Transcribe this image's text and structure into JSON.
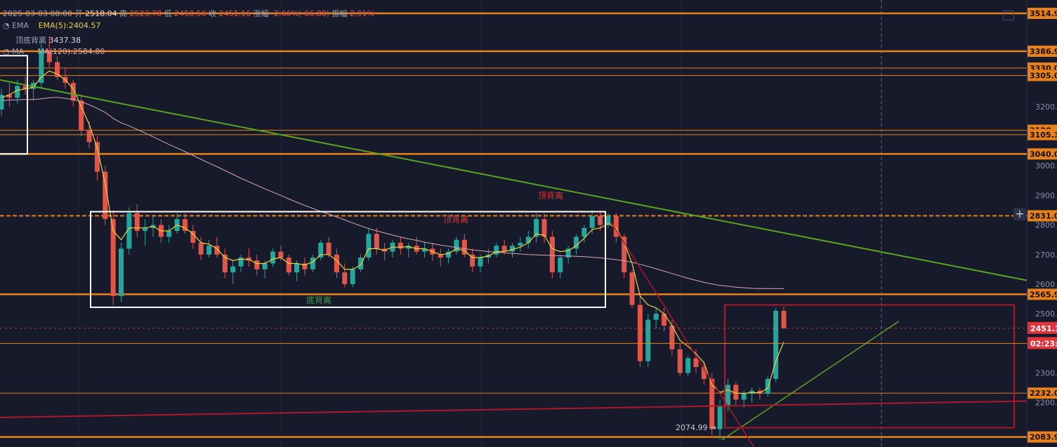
{
  "header": {
    "datetime": "2025-03-03 08:00",
    "open_label": "开",
    "open": "2518.04",
    "high_label": "高",
    "high": "2523.78",
    "low_label": "低",
    "low": "2450.56",
    "close_label": "收",
    "close": "2451.16",
    "change_label": "涨幅",
    "change": "-2.66%(-66.88)",
    "amplitude_label": "振幅",
    "amplitude": "2.91%"
  },
  "indicators": {
    "ema_title": "EMA",
    "ema_value": "EMA(5):2404.57",
    "divergence_title": "顶底背离",
    "divergence_value": "3437.38",
    "ma_title": "MA",
    "ma_value": "MA(120):2584.80"
  },
  "annotations": {
    "top_div_1": "顶背离",
    "top_div_2": "顶背离",
    "bottom_div": "底背离",
    "low_marker": "2074.99 →"
  },
  "price_tags": {
    "current": "2451.1",
    "countdown": "02:23:"
  },
  "colors": {
    "background": "#161a2b",
    "up": "#26a69a",
    "down": "#e0564b",
    "level": "#e8801c",
    "ema": "#e9d13f",
    "ma": "#d7a9b0",
    "green_trend": "#5aa320",
    "red_trend": "#b0162b",
    "box_white": "#ffffff",
    "box_red": "#b0162b"
  },
  "chart_data": {
    "type": "candlestick",
    "ylim": [
      2050,
      3560
    ],
    "y_ticks": [
      "3200.0",
      "3000.0",
      "2900.0",
      "2800.0",
      "2700.0",
      "2600.0",
      "2500.0",
      "2300.0",
      "2200.0"
    ],
    "levels": [
      "3514.9",
      "3386.9",
      "3330.0",
      "3305.0",
      "3120",
      "3105.3",
      "3040.0",
      "2831.0",
      "2565.9",
      "2232.0",
      "2083.9"
    ],
    "candles": [
      [
        3190,
        3260,
        3170,
        3240
      ],
      [
        3240,
        3280,
        3200,
        3230
      ],
      [
        3230,
        3290,
        3210,
        3270
      ],
      [
        3270,
        3300,
        3240,
        3260
      ],
      [
        3260,
        3290,
        3220,
        3280
      ],
      [
        3280,
        3420,
        3260,
        3390
      ],
      [
        3390,
        3437,
        3330,
        3350
      ],
      [
        3350,
        3370,
        3290,
        3300
      ],
      [
        3300,
        3330,
        3260,
        3280
      ],
      [
        3280,
        3290,
        3200,
        3220
      ],
      [
        3220,
        3240,
        3100,
        3120
      ],
      [
        3120,
        3150,
        3060,
        3080
      ],
      [
        3080,
        3100,
        2950,
        2980
      ],
      [
        2980,
        3000,
        2800,
        2820
      ],
      [
        2820,
        2850,
        2530,
        2560
      ],
      [
        2560,
        2740,
        2540,
        2720
      ],
      [
        2720,
        2860,
        2700,
        2840
      ],
      [
        2840,
        2870,
        2760,
        2780
      ],
      [
        2780,
        2820,
        2730,
        2790
      ],
      [
        2790,
        2830,
        2760,
        2800
      ],
      [
        2800,
        2820,
        2740,
        2760
      ],
      [
        2760,
        2800,
        2740,
        2780
      ],
      [
        2780,
        2840,
        2770,
        2820
      ],
      [
        2820,
        2840,
        2770,
        2780
      ],
      [
        2780,
        2800,
        2720,
        2740
      ],
      [
        2740,
        2760,
        2680,
        2700
      ],
      [
        2700,
        2750,
        2690,
        2730
      ],
      [
        2730,
        2760,
        2690,
        2700
      ],
      [
        2700,
        2720,
        2620,
        2640
      ],
      [
        2640,
        2680,
        2600,
        2660
      ],
      [
        2660,
        2700,
        2640,
        2690
      ],
      [
        2690,
        2720,
        2660,
        2680
      ],
      [
        2680,
        2700,
        2630,
        2650
      ],
      [
        2650,
        2680,
        2620,
        2670
      ],
      [
        2670,
        2720,
        2660,
        2710
      ],
      [
        2710,
        2730,
        2680,
        2690
      ],
      [
        2690,
        2700,
        2630,
        2640
      ],
      [
        2640,
        2680,
        2610,
        2670
      ],
      [
        2670,
        2690,
        2630,
        2650
      ],
      [
        2650,
        2700,
        2640,
        2690
      ],
      [
        2690,
        2750,
        2680,
        2740
      ],
      [
        2740,
        2760,
        2690,
        2700
      ],
      [
        2700,
        2720,
        2620,
        2640
      ],
      [
        2640,
        2670,
        2590,
        2600
      ],
      [
        2600,
        2660,
        2590,
        2650
      ],
      [
        2650,
        2700,
        2640,
        2690
      ],
      [
        2690,
        2790,
        2680,
        2770
      ],
      [
        2770,
        2790,
        2700,
        2720
      ],
      [
        2720,
        2740,
        2680,
        2710
      ],
      [
        2710,
        2750,
        2690,
        2740
      ],
      [
        2740,
        2760,
        2700,
        2720
      ],
      [
        2720,
        2740,
        2690,
        2730
      ],
      [
        2730,
        2760,
        2700,
        2710
      ],
      [
        2710,
        2740,
        2690,
        2720
      ],
      [
        2720,
        2740,
        2680,
        2700
      ],
      [
        2700,
        2720,
        2660,
        2690
      ],
      [
        2690,
        2720,
        2670,
        2710
      ],
      [
        2710,
        2760,
        2700,
        2750
      ],
      [
        2750,
        2770,
        2690,
        2700
      ],
      [
        2700,
        2720,
        2640,
        2660
      ],
      [
        2660,
        2700,
        2640,
        2690
      ],
      [
        2690,
        2720,
        2670,
        2700
      ],
      [
        2700,
        2740,
        2690,
        2730
      ],
      [
        2730,
        2750,
        2700,
        2710
      ],
      [
        2710,
        2740,
        2690,
        2730
      ],
      [
        2730,
        2760,
        2710,
        2740
      ],
      [
        2740,
        2780,
        2720,
        2760
      ],
      [
        2760,
        2840,
        2740,
        2820
      ],
      [
        2820,
        2840,
        2740,
        2760
      ],
      [
        2760,
        2780,
        2620,
        2640
      ],
      [
        2640,
        2700,
        2620,
        2690
      ],
      [
        2690,
        2730,
        2670,
        2720
      ],
      [
        2720,
        2770,
        2700,
        2760
      ],
      [
        2760,
        2800,
        2740,
        2790
      ],
      [
        2790,
        2850,
        2770,
        2830
      ],
      [
        2830,
        2850,
        2780,
        2800
      ],
      [
        2800,
        2840,
        2790,
        2830
      ],
      [
        2830,
        2840,
        2740,
        2760
      ],
      [
        2760,
        2770,
        2620,
        2640
      ],
      [
        2640,
        2650,
        2520,
        2530
      ],
      [
        2530,
        2560,
        2320,
        2340
      ],
      [
        2340,
        2500,
        2320,
        2480
      ],
      [
        2480,
        2520,
        2450,
        2500
      ],
      [
        2500,
        2520,
        2440,
        2460
      ],
      [
        2460,
        2480,
        2360,
        2380
      ],
      [
        2380,
        2400,
        2290,
        2300
      ],
      [
        2300,
        2360,
        2290,
        2350
      ],
      [
        2350,
        2380,
        2300,
        2320
      ],
      [
        2320,
        2340,
        2260,
        2280
      ],
      [
        2280,
        2300,
        2090,
        2110
      ],
      [
        2110,
        2210,
        2075,
        2190
      ],
      [
        2190,
        2280,
        2170,
        2260
      ],
      [
        2260,
        2270,
        2190,
        2210
      ],
      [
        2210,
        2240,
        2180,
        2230
      ],
      [
        2230,
        2250,
        2200,
        2240
      ],
      [
        2240,
        2250,
        2210,
        2230
      ],
      [
        2230,
        2290,
        2220,
        2280
      ],
      [
        2280,
        2520,
        2270,
        2510
      ],
      [
        2510,
        2524,
        2450,
        2451
      ]
    ],
    "ema5": [
      3230,
      3240,
      3255,
      3260,
      3265,
      3300,
      3320,
      3310,
      3290,
      3260,
      3200,
      3140,
      3060,
      2940,
      2780,
      2750,
      2790,
      2790,
      2790,
      2795,
      2780,
      2780,
      2800,
      2790,
      2770,
      2740,
      2735,
      2720,
      2690,
      2680,
      2685,
      2683,
      2670,
      2670,
      2685,
      2690,
      2670,
      2670,
      2665,
      2675,
      2700,
      2700,
      2680,
      2650,
      2650,
      2665,
      2720,
      2720,
      2715,
      2725,
      2725,
      2727,
      2720,
      2720,
      2710,
      2700,
      2703,
      2720,
      2713,
      2690,
      2690,
      2695,
      2710,
      2710,
      2717,
      2725,
      2740,
      2770,
      2765,
      2720,
      2710,
      2713,
      2730,
      2755,
      2785,
      2790,
      2805,
      2790,
      2740,
      2670,
      2560,
      2530,
      2520,
      2500,
      2460,
      2410,
      2390,
      2365,
      2335,
      2260,
      2235,
      2243,
      2232,
      2231,
      2234,
      2233,
      2249,
      2340,
      2404.57
    ],
    "ma120": [
      3220,
      3222,
      3223,
      3224,
      3224,
      3226,
      3230,
      3231,
      3228,
      3224,
      3216,
      3206,
      3194,
      3180,
      3160,
      3145,
      3135,
      3123,
      3111,
      3098,
      3085,
      3072,
      3060,
      3048,
      3035,
      3022,
      3009,
      2997,
      2984,
      2971,
      2958,
      2946,
      2934,
      2922,
      2911,
      2900,
      2888,
      2877,
      2866,
      2856,
      2846,
      2837,
      2827,
      2817,
      2807,
      2797,
      2788,
      2780,
      2773,
      2766,
      2759,
      2753,
      2748,
      2742,
      2737,
      2732,
      2728,
      2724,
      2720,
      2716,
      2713,
      2710,
      2708,
      2706,
      2704,
      2702,
      2700,
      2699,
      2698,
      2697,
      2696,
      2695,
      2694,
      2693,
      2691,
      2689,
      2686,
      2683,
      2679,
      2674,
      2667,
      2660,
      2652,
      2644,
      2636,
      2628,
      2620,
      2613,
      2606,
      2601,
      2596,
      2593,
      2590,
      2588,
      2586,
      2585,
      2585,
      2585,
      2584.8
    ]
  }
}
